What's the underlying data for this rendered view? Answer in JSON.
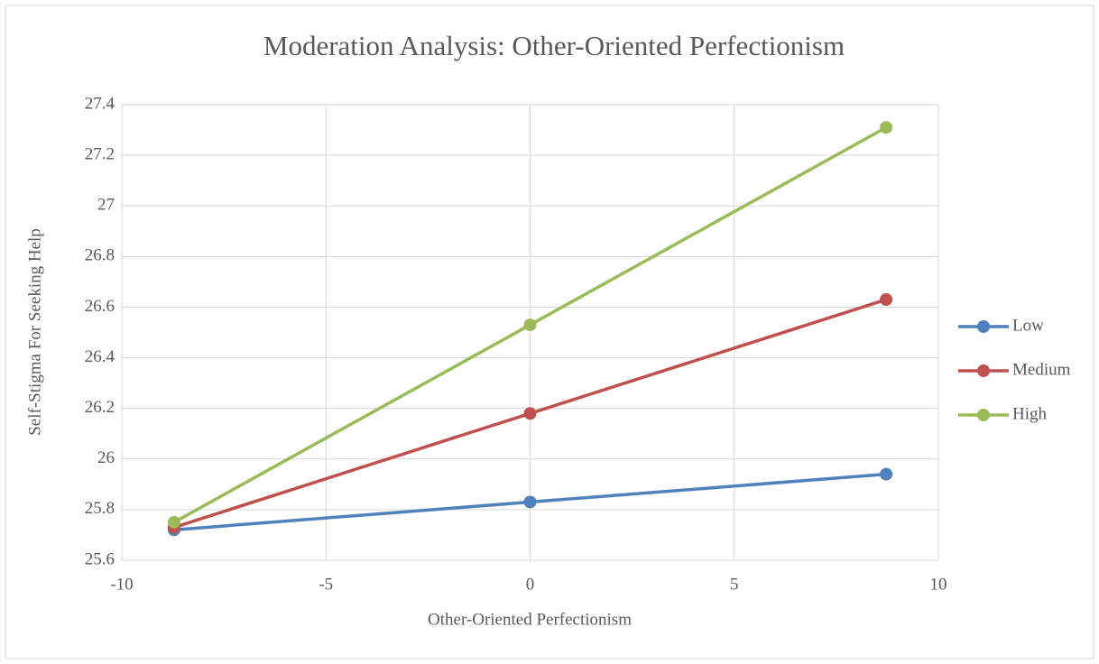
{
  "chart_data": {
    "type": "line",
    "title": "Moderation Analysis: Other-Oriented Perfectionism",
    "x_label": "Other-Oriented Perfectionism",
    "y_label": "Self-Stigma For Seeking Help",
    "x": [
      -8.72,
      0,
      8.72
    ],
    "series": [
      {
        "name": "Low",
        "color": "#4f81bd",
        "values": [
          25.72,
          25.83,
          25.94
        ]
      },
      {
        "name": "Medium",
        "color": "#c0504d",
        "values": [
          25.73,
          26.18,
          26.63
        ]
      },
      {
        "name": "High",
        "color": "#9bbb59",
        "values": [
          25.75,
          26.53,
          27.31
        ]
      }
    ],
    "xlim": [
      -10,
      10
    ],
    "xticks": [
      -10,
      -5,
      0,
      5,
      10
    ],
    "ylim": [
      25.6,
      27.4
    ],
    "yticks": [
      25.6,
      25.8,
      26,
      26.2,
      26.4,
      26.6,
      26.8,
      27,
      27.2,
      27.4
    ],
    "grid": true,
    "legend": "right"
  }
}
